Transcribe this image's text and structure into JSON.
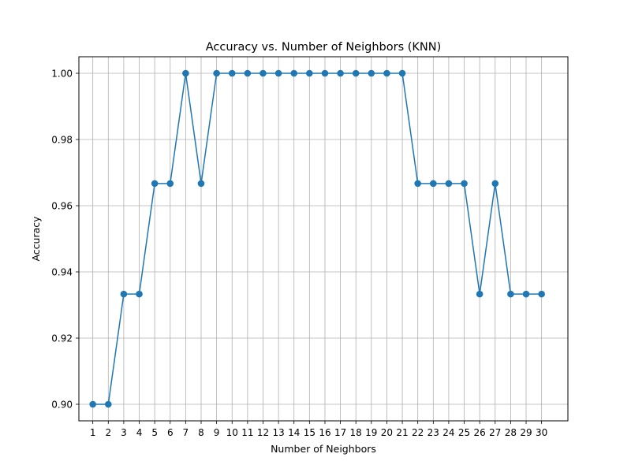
{
  "chart_data": {
    "type": "line",
    "title": "Accuracy vs. Number of Neighbors (KNN)",
    "xlabel": "Number of Neighbors",
    "ylabel": "Accuracy",
    "x": [
      1,
      2,
      3,
      4,
      5,
      6,
      7,
      8,
      9,
      10,
      11,
      12,
      13,
      14,
      15,
      16,
      17,
      18,
      19,
      20,
      21,
      22,
      23,
      24,
      25,
      26,
      27,
      28,
      29,
      30
    ],
    "y": [
      0.9,
      0.9,
      0.9333,
      0.9333,
      0.9667,
      0.9667,
      1.0,
      0.9667,
      1.0,
      1.0,
      1.0,
      1.0,
      1.0,
      1.0,
      1.0,
      1.0,
      1.0,
      1.0,
      1.0,
      1.0,
      1.0,
      0.9667,
      0.9667,
      0.9667,
      0.9667,
      0.9333,
      0.9667,
      0.9333,
      0.9333,
      0.9333
    ],
    "xlim": [
      0.1,
      31.7
    ],
    "ylim": [
      0.895,
      1.005
    ],
    "yticks": [
      0.9,
      0.92,
      0.94,
      0.96,
      0.98,
      1.0
    ],
    "ytick_labels": [
      "0.90",
      "0.92",
      "0.94",
      "0.96",
      "0.98",
      "1.00"
    ],
    "xticks": [
      1,
      2,
      3,
      4,
      5,
      6,
      7,
      8,
      9,
      10,
      11,
      12,
      13,
      14,
      15,
      16,
      17,
      18,
      19,
      20,
      21,
      22,
      23,
      24,
      25,
      26,
      27,
      28,
      29,
      30
    ],
    "grid": true,
    "marker": "circle",
    "line_color": "#1f77b4"
  }
}
